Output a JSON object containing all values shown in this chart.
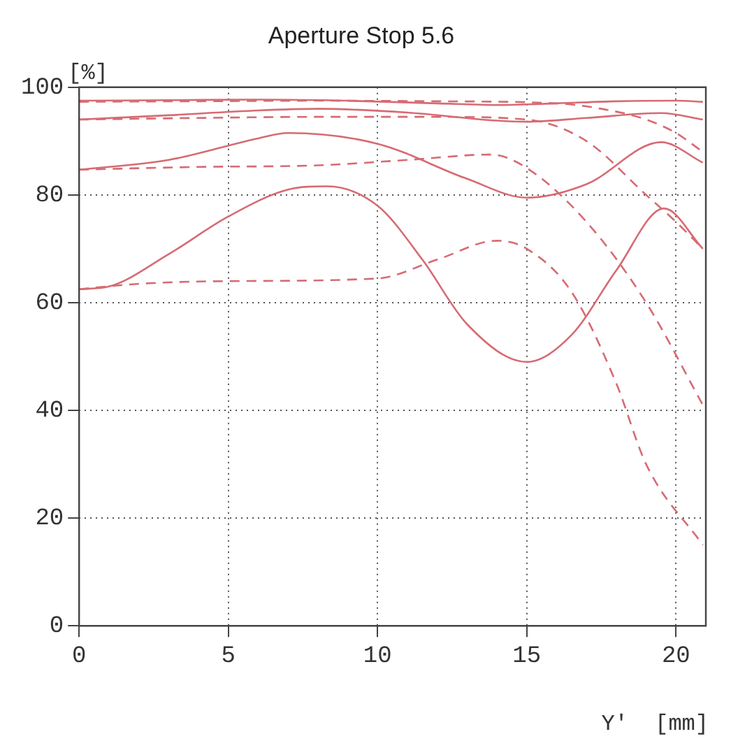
{
  "chart_data": {
    "type": "line",
    "title": "Aperture Stop 5.6",
    "ylabel": "[%]",
    "xlabel": "Y'  [mm]",
    "xlim": [
      0,
      21
    ],
    "xticks": [
      0,
      5,
      10,
      15,
      20
    ],
    "ylim": [
      0,
      100
    ],
    "yticks": [
      0,
      20,
      40,
      60,
      80,
      100
    ],
    "grid": true,
    "legend": false,
    "marker": "none",
    "series": [
      {
        "color": "#d66b73",
        "line_style": "solid",
        "x": [
          0,
          3,
          6,
          9,
          12,
          14,
          16,
          18,
          20,
          20.9
        ],
        "values": [
          97.5,
          97.6,
          97.7,
          97.5,
          97,
          96.7,
          97,
          97.4,
          97.5,
          97.3
        ]
      },
      {
        "color": "#d66b73",
        "line_style": "solid",
        "x": [
          0,
          3,
          6,
          8,
          11,
          14,
          15,
          17,
          19.5,
          20.9
        ],
        "values": [
          94,
          94.8,
          95.7,
          96,
          95.3,
          93.8,
          93.6,
          94.3,
          95.2,
          94
        ]
      },
      {
        "color": "#d66b73",
        "line_style": "solid",
        "x": [
          0,
          3,
          6,
          7,
          10,
          13,
          15,
          17,
          19.5,
          20.9
        ],
        "values": [
          84.7,
          86.5,
          90.5,
          91.5,
          89.5,
          83,
          79.5,
          82,
          89.8,
          86
        ]
      },
      {
        "color": "#d66b73",
        "line_style": "solid",
        "x": [
          0,
          1,
          3,
          5,
          7,
          8.3,
          10,
          11.5,
          13,
          15,
          16.5,
          18,
          19.6,
          20.9
        ],
        "values": [
          62.5,
          63,
          69,
          76,
          81,
          81.6,
          78,
          68,
          56,
          49,
          54,
          66,
          77.5,
          70
        ]
      },
      {
        "color": "#d66b73",
        "line_style": "dashed",
        "x": [
          0,
          4,
          8,
          12,
          16,
          17.5,
          19,
          20,
          20.9
        ],
        "values": [
          97.3,
          97.4,
          97.5,
          97.4,
          97,
          96,
          94,
          91.5,
          88
        ]
      },
      {
        "color": "#d66b73",
        "line_style": "dashed",
        "x": [
          0,
          4,
          8,
          12,
          15,
          17,
          19,
          20,
          20.9
        ],
        "values": [
          94,
          94.3,
          94.5,
          94.5,
          94,
          90,
          80,
          75,
          70
        ]
      },
      {
        "color": "#d66b73",
        "line_style": "dashed",
        "x": [
          0,
          4,
          8,
          11,
          13.8,
          15,
          17,
          19,
          20.9
        ],
        "values": [
          84.7,
          85.2,
          85.5,
          86.5,
          87.5,
          85,
          75,
          60,
          41
        ]
      },
      {
        "color": "#d66b73",
        "line_style": "dashed",
        "x": [
          0,
          2,
          5,
          10,
          12,
          14,
          15,
          16.5,
          18,
          19,
          20.9
        ],
        "values": [
          62.5,
          63.5,
          64,
          64.5,
          68,
          71.5,
          70,
          62,
          45,
          30,
          15
        ]
      }
    ]
  }
}
